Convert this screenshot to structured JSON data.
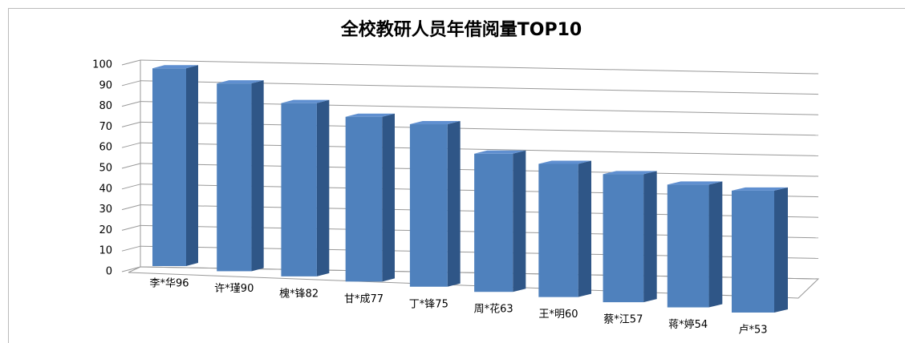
{
  "chart_data": {
    "type": "bar3d",
    "title": "全校教研人员年借阅量TOP10",
    "categories": [
      "李*华96",
      "许*瑾90",
      "槐*锋82",
      "甘*成77",
      "丁*锋75",
      "周*花63",
      "王*明60",
      "蔡*江57",
      "蒋*婷54",
      "卢*53"
    ],
    "values": [
      96,
      90,
      82,
      77,
      75,
      63,
      60,
      57,
      54,
      53
    ],
    "color": "#4f81bd",
    "ylim": [
      0,
      100
    ],
    "yticks": [
      0,
      10,
      20,
      30,
      40,
      50,
      60,
      70,
      80,
      90,
      100
    ],
    "grid": true
  }
}
